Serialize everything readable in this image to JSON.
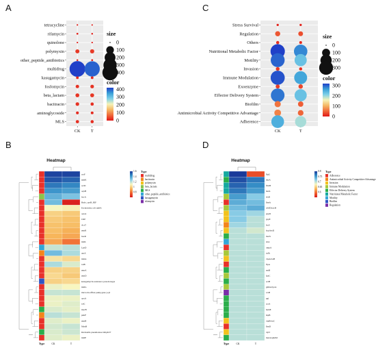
{
  "panels": {
    "A": {
      "label": "A",
      "chart_data": {
        "type": "scatter",
        "x": [
          "CK",
          "T"
        ],
        "y": [
          "tetracycline",
          "rifamycin",
          "quinolone",
          "polymyxin",
          "other_peptide_antibiotics",
          "multidrug",
          "kasugamycin",
          "fosfomycin",
          "beta_lactam",
          "bacitracin",
          "aminoglycoside",
          "MLS"
        ],
        "size": [
          [
            4,
            3
          ],
          [
            6,
            5
          ],
          [
            2,
            2
          ],
          [
            28,
            30
          ],
          [
            5,
            6
          ],
          [
            420,
            395
          ],
          [
            12,
            12
          ],
          [
            20,
            22
          ],
          [
            25,
            26
          ],
          [
            22,
            18
          ],
          [
            14,
            13
          ],
          [
            18,
            17
          ]
        ],
        "color": [
          [
            5,
            5
          ],
          [
            10,
            8
          ],
          [
            5,
            5
          ],
          [
            28,
            30
          ],
          [
            8,
            9
          ],
          [
            420,
            395
          ],
          [
            15,
            14
          ],
          [
            22,
            24
          ],
          [
            25,
            27
          ],
          [
            22,
            20
          ],
          [
            16,
            15
          ],
          [
            20,
            18
          ]
        ],
        "size_legend": {
          "title": "size",
          "values": [
            0,
            100,
            200,
            300,
            400
          ]
        },
        "color_legend": {
          "title": "color",
          "ticks": [
            400,
            300,
            200,
            100,
            0
          ],
          "colors": [
            "#2040c8",
            "#3aa0d8",
            "#7ed0e8",
            "#f5f2b8",
            "#f5b865",
            "#f06a3a",
            "#e01818"
          ]
        }
      }
    },
    "C": {
      "label": "C",
      "chart_data": {
        "type": "scatter",
        "x": [
          "CK",
          "T"
        ],
        "y": [
          "Stress Survival",
          "Regulation",
          "Others",
          "Nutritional Metabolic Factor",
          "Motility",
          "Invasion",
          "Immune Modulation",
          "Exoenzyme",
          "Effector Delivery System",
          "Biofilm",
          "Antimicrobial Activity Competitive Advantage",
          "Adherence"
        ],
        "size": [
          [
            8,
            8
          ],
          [
            40,
            35
          ],
          [
            15,
            12
          ],
          [
            320,
            280
          ],
          [
            300,
            230
          ],
          [
            22,
            15
          ],
          [
            310,
            260
          ],
          [
            25,
            30
          ],
          [
            290,
            230
          ],
          [
            60,
            45
          ],
          [
            70,
            50
          ],
          [
            250,
            195
          ]
        ],
        "color": [
          [
            8,
            8
          ],
          [
            40,
            35
          ],
          [
            15,
            12
          ],
          [
            320,
            280
          ],
          [
            300,
            230
          ],
          [
            22,
            15
          ],
          [
            310,
            260
          ],
          [
            25,
            30
          ],
          [
            290,
            230
          ],
          [
            60,
            45
          ],
          [
            70,
            50
          ],
          [
            250,
            195
          ]
        ],
        "size_legend": {
          "title": "size",
          "values": [
            0,
            100,
            200,
            300
          ]
        },
        "color_legend": {
          "title": "color",
          "ticks": [
            300,
            200,
            100,
            0
          ],
          "colors": [
            "#2040c8",
            "#3aa0d8",
            "#7ed0e8",
            "#f5f2b8",
            "#f5b865",
            "#f06a3a",
            "#e01818"
          ]
        }
      }
    },
    "B": {
      "label": "B",
      "chart_data": {
        "type": "heatmap",
        "title": "Heatmap",
        "columns": [
          "CK",
          "T"
        ],
        "col_header": "Type",
        "rows": [
          "acrF",
          "mdtK",
          "acrD",
          "oqxB",
          "bacA",
          "Bado_rpoB_RIF",
          "Escherichia coli mdfA",
          "oqxA",
          "CRP",
          "AcrT",
          "emrR",
          "baeR",
          "mdtL",
          "LpsD",
          "arnA",
          "mdtA",
          "tolB",
          "emrA",
          "emrD",
          "kasugamycin resistance protein ksgA",
          "mdtG",
          "microcin efflux pump gene yojI",
          "cpxA",
          "tolC",
          "macB",
          "pmrF",
          "emrB",
          "MexB",
          "Klebsiella pneumoniae OmpK37",
          "mdtE"
        ],
        "row_type": [
          0,
          0,
          0,
          0,
          3,
          0,
          0,
          0,
          0,
          0,
          0,
          0,
          0,
          5,
          1,
          0,
          0,
          0,
          0,
          6,
          0,
          0,
          0,
          0,
          4,
          1,
          0,
          0,
          4,
          0
        ],
        "values": [
          [
            1.58,
            1.58
          ],
          [
            1.55,
            1.52
          ],
          [
            1.48,
            1.45
          ],
          [
            1.42,
            1.4
          ],
          [
            1.35,
            1.3
          ],
          [
            1.32,
            0.62
          ],
          [
            1.1,
            1.08
          ],
          [
            1.0,
            0.98
          ],
          [
            0.98,
            0.96
          ],
          [
            0.96,
            0.95
          ],
          [
            0.95,
            0.92
          ],
          [
            0.93,
            0.9
          ],
          [
            0.9,
            0.8
          ],
          [
            1.18,
            1.2
          ],
          [
            1.32,
            1.22
          ],
          [
            1.05,
            1.02
          ],
          [
            1.22,
            1.15
          ],
          [
            1.0,
            1.0
          ],
          [
            1.02,
            0.98
          ],
          [
            1.0,
            1.02
          ],
          [
            1.12,
            1.1
          ],
          [
            1.18,
            1.18
          ],
          [
            1.12,
            1.12
          ],
          [
            1.12,
            1.14
          ],
          [
            1.15,
            1.13
          ],
          [
            1.2,
            1.18
          ],
          [
            1.14,
            1.12
          ],
          [
            1.16,
            1.18
          ],
          [
            1.15,
            1.17
          ],
          [
            1.14,
            1.12
          ]
        ],
        "color_scale": {
          "ticks": [
            1.6,
            1.4,
            1.2,
            1,
            0.8
          ],
          "colors": [
            "#1a3a9a",
            "#3690c8",
            "#8fd0e8",
            "#f8f6c0",
            "#f7b85c",
            "#f0622e",
            "#d7191c"
          ]
        },
        "legend": {
          "title": "Type",
          "items": [
            "multidrug",
            "bacitracin",
            "polymyxin",
            "beta_lactam",
            "MLS",
            "other_peptide_antibiotics",
            "kasugamycin",
            "rifamycin"
          ],
          "colors": [
            "#e8312a",
            "#f3851c",
            "#f2c21d",
            "#8bc34a",
            "#2bae4a",
            "#34a6d6",
            "#2f55c4",
            "#7a2ea8"
          ]
        }
      }
    },
    "D": {
      "label": "D",
      "chart_data": {
        "type": "heatmap",
        "title": "Heatmap",
        "columns": [
          "CK",
          "T"
        ],
        "col_header": "Type",
        "rows": [
          "flgG",
          "hdrA",
          "flmH",
          "henL",
          "rfaD",
          "fimA",
          "wbfDwecB",
          "gspD",
          "gspE",
          "lsxS",
          "hcpAssD",
          "motS",
          "sitA",
          "ompA",
          "tufA",
          "vipA/tssB",
          "flpA",
          "entB",
          "lpxC",
          "acrB",
          "gmhA/lpcA",
          "rcsB",
          "pgi",
          "acrA",
          "hemE",
          "htpB",
          "vipB/tssC",
          "fimD",
          "clpV",
          "mexA/ghnM"
        ],
        "row_type": [
          5,
          4,
          5,
          5,
          3,
          0,
          3,
          2,
          2,
          1,
          2,
          4,
          6,
          0,
          3,
          2,
          0,
          4,
          3,
          4,
          3,
          8,
          4,
          4,
          4,
          4,
          2,
          0,
          2,
          4
        ],
        "values": [
          [
            0.8,
            0.58
          ],
          [
            0.79,
            0.77
          ],
          [
            0.78,
            0.76
          ],
          [
            0.77,
            0.75
          ],
          [
            0.75,
            0.72
          ],
          [
            0.74,
            0.73
          ],
          [
            0.73,
            0.74
          ],
          [
            0.72,
            0.71
          ],
          [
            0.72,
            0.7
          ],
          [
            0.71,
            0.7
          ],
          [
            0.7,
            0.69
          ],
          [
            0.7,
            0.7
          ],
          [
            0.7,
            0.7
          ],
          [
            0.7,
            0.7
          ],
          [
            0.7,
            0.7
          ],
          [
            0.7,
            0.7
          ],
          [
            0.7,
            0.7
          ],
          [
            0.7,
            0.7
          ],
          [
            0.7,
            0.7
          ],
          [
            0.7,
            0.7
          ],
          [
            0.7,
            0.7
          ],
          [
            0.7,
            0.7
          ],
          [
            0.7,
            0.7
          ],
          [
            0.7,
            0.7
          ],
          [
            0.7,
            0.7
          ],
          [
            0.7,
            0.7
          ],
          [
            0.7,
            0.7
          ],
          [
            0.7,
            0.7
          ],
          [
            0.7,
            0.7
          ],
          [
            0.7,
            0.7
          ]
        ],
        "color_scale": {
          "ticks": [
            0.8,
            0.75,
            0.7,
            0.65,
            0.6
          ],
          "colors": [
            "#1a3a9a",
            "#3690c8",
            "#8fd0e8",
            "#f8f6c0",
            "#f7b85c",
            "#f0622e",
            "#d7191c"
          ]
        },
        "legend": {
          "title": "Type",
          "items": [
            "Adherence",
            "Antimicrobial Activity Competitive Advantage",
            "Invasion",
            "Immune Modulation",
            "Effector Delivery System",
            "Nutritional Metabolic Factor",
            "Motility",
            "Biofilm",
            "Regulation"
          ],
          "colors": [
            "#e8312a",
            "#f3851c",
            "#f2c21d",
            "#a8c83a",
            "#2bae4a",
            "#16a9a0",
            "#34a6d6",
            "#2f55c4",
            "#7a2ea8"
          ]
        }
      }
    }
  }
}
